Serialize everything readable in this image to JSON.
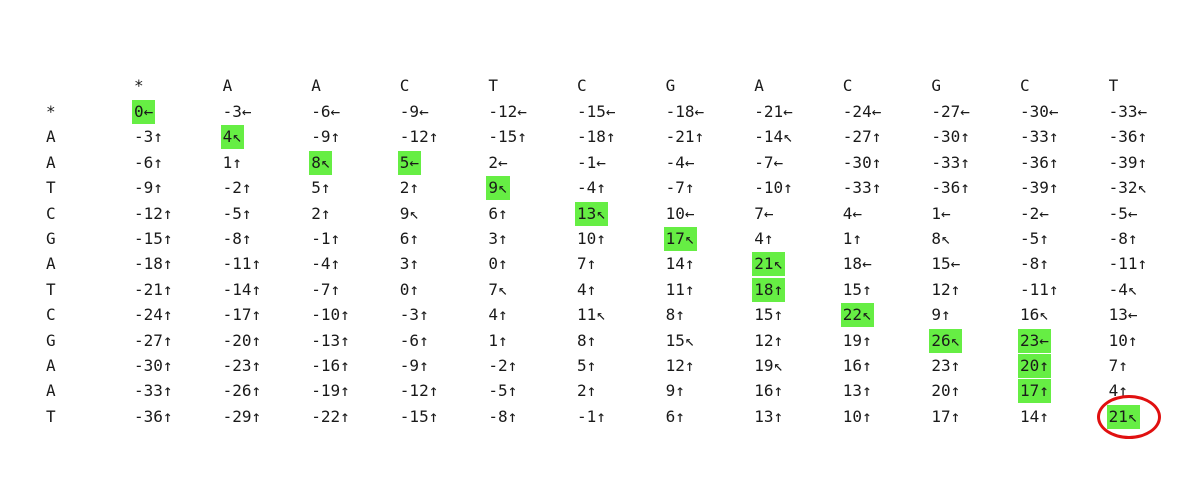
{
  "title": "",
  "column_headers": [
    "*",
    "A",
    "A",
    "C",
    "T",
    "C",
    "G",
    "A",
    "C",
    "G",
    "C",
    "T"
  ],
  "row_headers": [
    "*",
    "A",
    "A",
    "T",
    "C",
    "G",
    "A",
    "T",
    "C",
    "G",
    "A",
    "A",
    "T"
  ],
  "matrix": [
    [
      "0←",
      "-3←",
      "-6←",
      "-9←",
      "-12←",
      "-15←",
      "-18←",
      "-21←",
      "-24←",
      "-27←",
      "-30←",
      "-33←"
    ],
    [
      "-3↑",
      "4↖",
      "-9↑",
      "-12↑",
      "-15↑",
      "-18↑",
      "-21↑",
      "-14↖",
      "-27↑",
      "-30↑",
      "-33↑",
      "-36↑"
    ],
    [
      "-6↑",
      "1↑",
      "8↖",
      "5←",
      "2←",
      "-1←",
      "-4←",
      "-7←",
      "-30↑",
      "-33↑",
      "-36↑",
      "-39↑"
    ],
    [
      "-9↑",
      "-2↑",
      "5↑",
      "2↑",
      "9↖",
      "-4↑",
      "-7↑",
      "-10↑",
      "-33↑",
      "-36↑",
      "-39↑",
      "-32↖"
    ],
    [
      "-12↑",
      "-5↑",
      "2↑",
      "9↖",
      "6↑",
      "13↖",
      "10←",
      "7←",
      "4←",
      "1←",
      "-2←",
      "-5←"
    ],
    [
      "-15↑",
      "-8↑",
      "-1↑",
      "6↑",
      "3↑",
      "10↑",
      "17↖",
      "4↑",
      "1↑",
      "8↖",
      "-5↑",
      "-8↑"
    ],
    [
      "-18↑",
      "-11↑",
      "-4↑",
      "3↑",
      "0↑",
      "7↑",
      "14↑",
      "21↖",
      "18←",
      "15←",
      "-8↑",
      "-11↑"
    ],
    [
      "-21↑",
      "-14↑",
      "-7↑",
      "0↑",
      "7↖",
      "4↑",
      "11↑",
      "18↑",
      "15↑",
      "12↑",
      "-11↑",
      "-4↖"
    ],
    [
      "-24↑",
      "-17↑",
      "-10↑",
      "-3↑",
      "4↑",
      "11↖",
      "8↑",
      "15↑",
      "22↖",
      "9↑",
      "16↖",
      "13←"
    ],
    [
      "-27↑",
      "-20↑",
      "-13↑",
      "-6↑",
      "1↑",
      "8↑",
      "15↖",
      "12↑",
      "19↑",
      "26↖",
      "23←",
      "10↑"
    ],
    [
      "-30↑",
      "-23↑",
      "-16↑",
      "-9↑",
      "-2↑",
      "5↑",
      "12↑",
      "19↖",
      "16↑",
      "23↑",
      "20↑",
      "7↑"
    ],
    [
      "-33↑",
      "-26↑",
      "-19↑",
      "-12↑",
      "-5↑",
      "2↑",
      "9↑",
      "16↑",
      "13↑",
      "20↑",
      "17↑",
      "4↑"
    ],
    [
      "-36↑",
      "-29↑",
      "-22↑",
      "-15↑",
      "-8↑",
      "-1↑",
      "6↑",
      "13↑",
      "10↑",
      "17↑",
      "14↑",
      "21↖"
    ]
  ],
  "traceback_path": [
    [
      0,
      0
    ],
    [
      1,
      1
    ],
    [
      2,
      2
    ],
    [
      2,
      3
    ],
    [
      3,
      4
    ],
    [
      4,
      5
    ],
    [
      5,
      6
    ],
    [
      6,
      7
    ],
    [
      7,
      7
    ],
    [
      8,
      8
    ],
    [
      9,
      9
    ],
    [
      9,
      10
    ],
    [
      10,
      10
    ],
    [
      11,
      10
    ],
    [
      12,
      11
    ]
  ],
  "circled_cell": [
    12,
    11
  ],
  "colors": {
    "highlight": "#66ee44",
    "circle": "#e01010",
    "text": "#1a1a1a"
  }
}
